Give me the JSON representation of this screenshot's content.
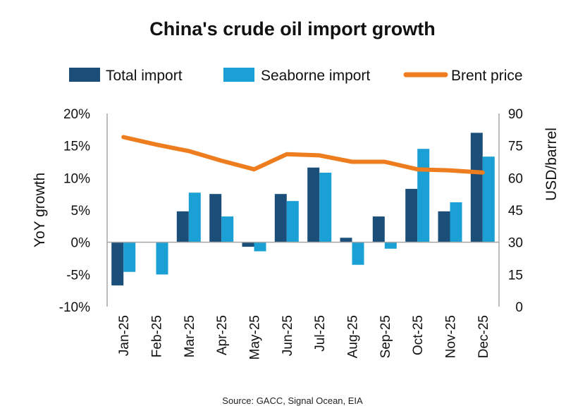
{
  "chart_data": {
    "type": "bar",
    "title": "China's crude oil import growth",
    "source": "Source: GACC, Signal Ocean, EIA",
    "categories": [
      "Jan-25",
      "Feb-25",
      "Mar-25",
      "Apr-25",
      "May-25",
      "Jun-25",
      "Jul-25",
      "Aug-25",
      "Sep-25",
      "Oct-25",
      "Nov-25",
      "Dec-25"
    ],
    "series": [
      {
        "name": "Total import",
        "type": "bar",
        "axis": "left",
        "color": "#1b4f7a",
        "values": [
          -6.7,
          null,
          4.8,
          7.5,
          -0.7,
          7.5,
          11.6,
          0.7,
          4.0,
          8.3,
          4.8,
          17.0
        ]
      },
      {
        "name": "Seaborne import",
        "type": "bar",
        "axis": "left",
        "color": "#1aa0d4",
        "values": [
          -4.6,
          -5.0,
          7.7,
          4.0,
          -1.4,
          6.4,
          10.8,
          -3.5,
          -1.0,
          14.5,
          6.2,
          13.3
        ]
      },
      {
        "name": "Brent price",
        "type": "line",
        "axis": "right",
        "color": "#ee7d1f",
        "values": [
          79,
          75.5,
          72.5,
          68,
          64,
          71,
          70.5,
          67.5,
          67.5,
          64,
          63.5,
          62.5
        ]
      }
    ],
    "ylabel": "YoY growth",
    "ylabel_right": "USD/barrel",
    "ylim": [
      -10,
      20
    ],
    "ylim_right": [
      0,
      90
    ],
    "yticks": [
      "20%",
      "15%",
      "10%",
      "5%",
      "0%",
      "-5%",
      "-10%"
    ],
    "yticks_right": [
      "90",
      "75",
      "60",
      "45",
      "30",
      "15",
      "0"
    ],
    "grid": false,
    "legend": "top"
  }
}
